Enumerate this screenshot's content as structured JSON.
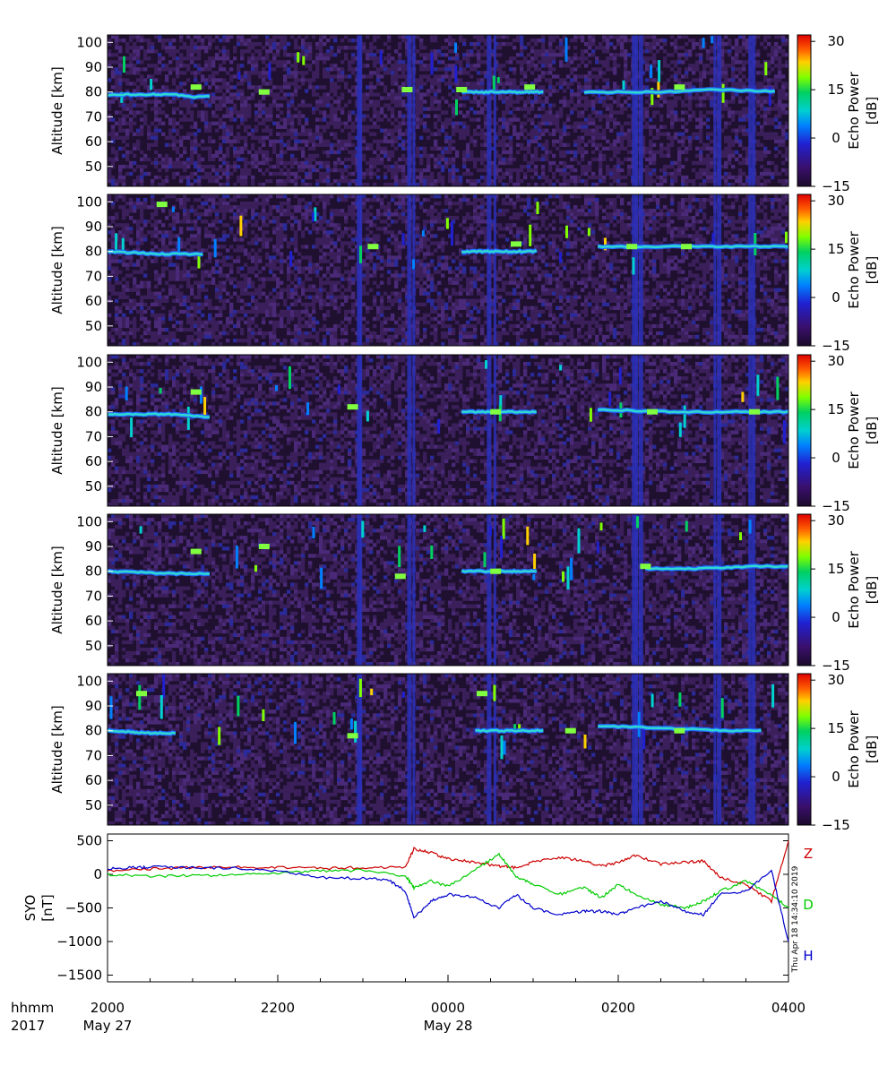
{
  "chart_data": [
    {
      "type": "heatmap",
      "panel": 1,
      "ylabel": "Altitude [km]",
      "yticks": [
        50,
        60,
        70,
        80,
        90,
        100
      ],
      "ylim": [
        42,
        103
      ],
      "colorbar": {
        "label": "Echo Power",
        "unit": "[dB]",
        "ticks": [
          -15,
          0,
          15,
          30
        ],
        "range": [
          -15,
          32
        ]
      },
      "echo_layer_km": [
        [
          0.0,
          79
        ],
        [
          0.1,
          79
        ],
        [
          0.12,
          78
        ],
        [
          0.52,
          80
        ],
        [
          0.62,
          80
        ],
        [
          0.72,
          80
        ],
        [
          0.82,
          80
        ],
        [
          0.88,
          81
        ],
        [
          1.0,
          80
        ]
      ],
      "layer_segments": [
        [
          0.0,
          0.15
        ],
        [
          0.52,
          0.64
        ],
        [
          0.7,
          0.98
        ]
      ],
      "spots": [
        [
          0.13,
          82
        ],
        [
          0.23,
          80
        ],
        [
          0.44,
          81
        ],
        [
          0.52,
          81
        ],
        [
          0.62,
          82
        ],
        [
          0.84,
          82
        ]
      ]
    },
    {
      "type": "heatmap",
      "panel": 2,
      "ylabel": "Altitude [km]",
      "yticks": [
        50,
        60,
        70,
        80,
        90,
        100
      ],
      "ylim": [
        42,
        103
      ],
      "colorbar": {
        "label": "Echo Power",
        "unit": "[dB]",
        "ticks": [
          -15,
          0,
          15,
          30
        ],
        "range": [
          -15,
          32
        ]
      },
      "echo_layer_km": [
        [
          0.0,
          80
        ],
        [
          0.08,
          79
        ],
        [
          0.14,
          79
        ],
        [
          0.52,
          80
        ],
        [
          0.62,
          80
        ],
        [
          0.72,
          82
        ],
        [
          0.82,
          82
        ],
        [
          0.9,
          82
        ],
        [
          1.0,
          82
        ]
      ],
      "layer_segments": [
        [
          0.0,
          0.14
        ],
        [
          0.52,
          0.63
        ],
        [
          0.72,
          1.0
        ]
      ],
      "spots": [
        [
          0.08,
          99
        ],
        [
          0.39,
          82
        ],
        [
          0.6,
          83
        ],
        [
          0.77,
          82
        ],
        [
          0.85,
          82
        ]
      ]
    },
    {
      "type": "heatmap",
      "panel": 3,
      "ylabel": "Altitude [km]",
      "yticks": [
        50,
        60,
        70,
        80,
        90,
        100
      ],
      "ylim": [
        42,
        103
      ],
      "colorbar": {
        "label": "Echo Power",
        "unit": "[dB]",
        "ticks": [
          -15,
          0,
          15,
          30
        ],
        "range": [
          -15,
          32
        ]
      },
      "echo_layer_km": [
        [
          0.0,
          79
        ],
        [
          0.1,
          79
        ],
        [
          0.14,
          78
        ],
        [
          0.52,
          80
        ],
        [
          0.62,
          80
        ],
        [
          0.72,
          81
        ],
        [
          0.82,
          80
        ],
        [
          0.9,
          80
        ],
        [
          1.0,
          80
        ]
      ],
      "layer_segments": [
        [
          0.0,
          0.15
        ],
        [
          0.52,
          0.63
        ],
        [
          0.72,
          1.0
        ]
      ],
      "spots": [
        [
          0.13,
          88
        ],
        [
          0.36,
          82
        ],
        [
          0.57,
          80
        ],
        [
          0.8,
          80
        ],
        [
          0.95,
          80
        ]
      ]
    },
    {
      "type": "heatmap",
      "panel": 4,
      "ylabel": "Altitude [km]",
      "yticks": [
        50,
        60,
        70,
        80,
        90,
        100
      ],
      "ylim": [
        42,
        103
      ],
      "colorbar": {
        "label": "Echo Power",
        "unit": "[dB]",
        "ticks": [
          -15,
          0,
          15,
          30
        ],
        "range": [
          -15,
          32
        ]
      },
      "echo_layer_km": [
        [
          0.0,
          80
        ],
        [
          0.1,
          79
        ],
        [
          0.15,
          79
        ],
        [
          0.52,
          80
        ],
        [
          0.62,
          80
        ],
        [
          0.78,
          81
        ],
        [
          0.86,
          81
        ],
        [
          0.95,
          82
        ],
        [
          1.0,
          82
        ]
      ],
      "layer_segments": [
        [
          0.0,
          0.15
        ],
        [
          0.52,
          0.63
        ],
        [
          0.79,
          1.0
        ]
      ],
      "spots": [
        [
          0.13,
          88
        ],
        [
          0.23,
          90
        ],
        [
          0.43,
          78
        ],
        [
          0.57,
          80
        ],
        [
          0.79,
          82
        ]
      ]
    },
    {
      "type": "heatmap",
      "panel": 5,
      "ylabel": "Altitude [km]",
      "yticks": [
        50,
        60,
        70,
        80,
        90,
        100
      ],
      "ylim": [
        42,
        103
      ],
      "colorbar": {
        "label": "Echo Power",
        "unit": "[dB]",
        "ticks": [
          -15,
          0,
          15,
          30
        ],
        "range": [
          -15,
          32
        ]
      },
      "echo_layer_km": [
        [
          0.0,
          80
        ],
        [
          0.07,
          79
        ],
        [
          0.12,
          79
        ],
        [
          0.54,
          80
        ],
        [
          0.64,
          80
        ],
        [
          0.72,
          82
        ],
        [
          0.82,
          81
        ],
        [
          0.92,
          80
        ],
        [
          1.0,
          80
        ]
      ],
      "layer_segments": [
        [
          0.0,
          0.1
        ],
        [
          0.54,
          0.64
        ],
        [
          0.72,
          0.96
        ]
      ],
      "spots": [
        [
          0.05,
          95
        ],
        [
          0.36,
          78
        ],
        [
          0.55,
          95
        ],
        [
          0.68,
          80
        ],
        [
          0.84,
          80
        ]
      ]
    },
    {
      "type": "line",
      "panel": 6,
      "ylabel": "SYO\n[nT]",
      "yticks": [
        -1500,
        -1000,
        -500,
        0,
        500
      ],
      "ylim": [
        -1600,
        600
      ],
      "xlim": [
        0,
        8
      ],
      "series": [
        {
          "name": "Z",
          "color": "#cc0000",
          "x": [
            0,
            0.5,
            1,
            1.5,
            2,
            2.5,
            3,
            3.5,
            3.6,
            3.8,
            4,
            4.3,
            4.6,
            4.8,
            5,
            5.3,
            5.6,
            5.8,
            6,
            6.2,
            6.5,
            6.8,
            7,
            7.2,
            7.5,
            7.8,
            8
          ],
          "y": [
            50,
            80,
            100,
            110,
            100,
            90,
            100,
            110,
            380,
            320,
            230,
            180,
            120,
            100,
            180,
            250,
            200,
            120,
            180,
            280,
            150,
            180,
            200,
            -50,
            -150,
            -400,
            500
          ]
        },
        {
          "name": "D",
          "color": "#00cc00",
          "x": [
            0,
            0.5,
            1,
            1.5,
            2,
            2.5,
            3,
            3.5,
            3.6,
            3.8,
            4,
            4.3,
            4.6,
            4.8,
            5,
            5.3,
            5.6,
            5.8,
            6,
            6.2,
            6.5,
            6.8,
            7,
            7.2,
            7.5,
            7.8,
            8
          ],
          "y": [
            0,
            -30,
            -20,
            -10,
            20,
            50,
            60,
            -20,
            -200,
            -100,
            -180,
            50,
            300,
            -30,
            -150,
            -300,
            -200,
            -350,
            -150,
            -300,
            -450,
            -500,
            -400,
            -250,
            -100,
            -300,
            -500
          ]
        },
        {
          "name": "H",
          "color": "#0000cc",
          "x": [
            0,
            0.3,
            0.5,
            1,
            1.5,
            2,
            2.5,
            3,
            3.3,
            3.5,
            3.6,
            3.8,
            4,
            4.3,
            4.6,
            4.8,
            5,
            5.3,
            5.6,
            5.8,
            6,
            6.2,
            6.5,
            6.8,
            7,
            7.2,
            7.5,
            7.8,
            8
          ],
          "y": [
            80,
            100,
            110,
            100,
            90,
            50,
            -50,
            -60,
            -80,
            -250,
            -650,
            -400,
            -300,
            -340,
            -500,
            -300,
            -500,
            -600,
            -550,
            -550,
            -600,
            -500,
            -400,
            -550,
            -600,
            -300,
            -250,
            50,
            -1000
          ]
        }
      ],
      "side_label": "Thu Apr 18 14:34:10 2019"
    }
  ],
  "xaxis": {
    "row_label_1": "hhmm",
    "row_label_2": "2017",
    "ticks": [
      {
        "time": "2000",
        "date": "May 27"
      },
      {
        "time": "2200",
        "date": ""
      },
      {
        "time": "0000",
        "date": "May 28"
      },
      {
        "time": "0200",
        "date": ""
      },
      {
        "time": "0400",
        "date": ""
      }
    ]
  }
}
